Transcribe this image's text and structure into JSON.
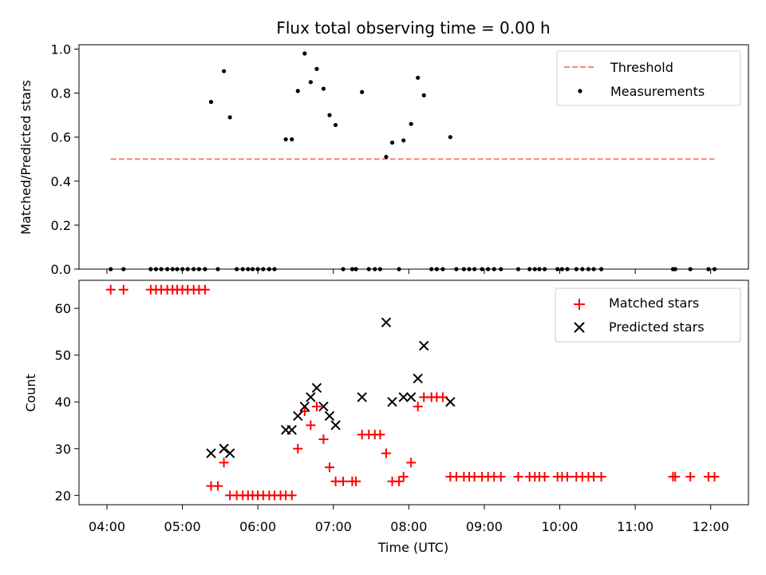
{
  "colors": {
    "threshold": "#ff7f7f",
    "measurement": "#000000",
    "matched": "#ff0000",
    "predicted": "#000000"
  },
  "x_tick_labels": [
    "04:00",
    "05:00",
    "06:00",
    "07:00",
    "08:00",
    "09:00",
    "10:00",
    "11:00",
    "12:00"
  ],
  "chart_data": [
    {
      "type": "scatter",
      "title": "Flux total observing time = 0.00 h",
      "xlabel": "",
      "ylabel": "Matched/Predicted stars",
      "xlim": [
        3.63,
        12.5
      ],
      "ylim": [
        0,
        1.02
      ],
      "yticks": [
        0.0,
        0.2,
        0.4,
        0.6,
        0.8,
        1.0
      ],
      "ytick_labels": [
        "0.0",
        "0.2",
        "0.4",
        "0.6",
        "0.8",
        "1.0"
      ],
      "legend": [
        "Threshold",
        "Measurements"
      ],
      "legend_position": "upper right",
      "threshold": {
        "value": 0.5,
        "x_range": [
          4.05,
          12.05
        ]
      },
      "series": [
        {
          "name": "Measurements",
          "x": [
            4.05,
            4.22,
            4.58,
            4.65,
            4.72,
            4.8,
            4.87,
            4.93,
            5.0,
            5.07,
            5.15,
            5.22,
            5.3,
            5.38,
            5.47,
            5.55,
            5.63,
            5.72,
            5.8,
            5.87,
            5.93,
            6.0,
            6.07,
            6.15,
            6.22,
            6.37,
            6.45,
            6.53,
            6.62,
            6.7,
            6.78,
            6.87,
            6.95,
            7.03,
            7.13,
            7.25,
            7.3,
            7.38,
            7.47,
            7.55,
            7.62,
            7.7,
            7.78,
            7.87,
            7.93,
            8.03,
            8.12,
            8.2,
            8.3,
            8.37,
            8.45,
            8.55,
            8.63,
            8.73,
            8.8,
            8.87,
            8.97,
            9.05,
            9.13,
            9.22,
            9.45,
            9.6,
            9.67,
            9.73,
            9.8,
            9.97,
            10.03,
            10.1,
            10.22,
            10.3,
            10.38,
            10.45,
            10.55,
            11.5,
            11.53,
            11.73,
            11.97,
            12.05
          ],
          "y": [
            0,
            0,
            0,
            0,
            0,
            0,
            0,
            0,
            0,
            0,
            0,
            0,
            0,
            0.76,
            0,
            0.9,
            0.69,
            0,
            0,
            0,
            0,
            0,
            0,
            0,
            0,
            0.59,
            0.59,
            0.81,
            0.98,
            0.85,
            0.91,
            0.82,
            0.7,
            0.655,
            0,
            0,
            0,
            0.805,
            0,
            0,
            0,
            0.51,
            0.575,
            0,
            0.585,
            0.66,
            0.87,
            0.79,
            0,
            0,
            0,
            0.6,
            0,
            0,
            0,
            0,
            0,
            0,
            0,
            0,
            0,
            0,
            0,
            0,
            0,
            0,
            0,
            0,
            0,
            0,
            0,
            0,
            0,
            0,
            0,
            0,
            0,
            0
          ]
        }
      ]
    },
    {
      "type": "scatter",
      "title": "",
      "xlabel": "Time (UTC)",
      "ylabel": "Count",
      "xlim": [
        3.63,
        12.5
      ],
      "ylim": [
        18,
        66
      ],
      "yticks": [
        20,
        30,
        40,
        50,
        60
      ],
      "ytick_labels": [
        "20",
        "30",
        "40",
        "50",
        "60"
      ],
      "legend": [
        "Matched stars",
        "Predicted stars"
      ],
      "legend_position": "upper right",
      "series": [
        {
          "name": "Matched stars",
          "marker": "+",
          "x": [
            4.05,
            4.22,
            4.58,
            4.65,
            4.72,
            4.8,
            4.87,
            4.93,
            5.0,
            5.07,
            5.15,
            5.22,
            5.3,
            5.38,
            5.47,
            5.55,
            5.63,
            5.72,
            5.8,
            5.87,
            5.93,
            6.0,
            6.07,
            6.15,
            6.22,
            6.3,
            6.37,
            6.45,
            6.53,
            6.62,
            6.7,
            6.78,
            6.87,
            6.95,
            7.03,
            7.13,
            7.25,
            7.3,
            7.38,
            7.47,
            7.55,
            7.62,
            7.7,
            7.78,
            7.87,
            7.93,
            8.03,
            8.12,
            8.2,
            8.3,
            8.37,
            8.45,
            8.55,
            8.63,
            8.73,
            8.8,
            8.87,
            8.97,
            9.05,
            9.13,
            9.22,
            9.45,
            9.6,
            9.67,
            9.73,
            9.8,
            9.97,
            10.03,
            10.1,
            10.22,
            10.3,
            10.38,
            10.45,
            10.55,
            11.5,
            11.53,
            11.73,
            11.97,
            12.05
          ],
          "y": [
            64,
            64,
            64,
            64,
            64,
            64,
            64,
            64,
            64,
            64,
            64,
            64,
            64,
            22,
            22,
            27,
            20,
            20,
            20,
            20,
            20,
            20,
            20,
            20,
            20,
            20,
            20,
            20,
            30,
            38,
            35,
            39,
            32,
            26,
            23,
            23,
            23,
            23,
            33,
            33,
            33,
            33,
            29,
            23,
            23,
            24,
            27,
            39,
            41,
            41,
            41,
            41,
            24,
            24,
            24,
            24,
            24,
            24,
            24,
            24,
            24,
            24,
            24,
            24,
            24,
            24,
            24,
            24,
            24,
            24,
            24,
            24,
            24,
            24,
            24,
            24,
            24,
            24,
            24
          ]
        },
        {
          "name": "Predicted stars",
          "marker": "x",
          "x": [
            5.38,
            5.55,
            5.63,
            6.37,
            6.45,
            6.53,
            6.62,
            6.7,
            6.78,
            6.87,
            6.95,
            7.03,
            7.38,
            7.7,
            7.78,
            7.93,
            8.03,
            8.12,
            8.2,
            8.55
          ],
          "y": [
            29,
            30,
            29,
            34,
            34,
            37,
            39,
            41,
            43,
            39,
            37,
            35,
            41,
            57,
            40,
            41,
            41,
            45,
            52,
            40
          ]
        }
      ]
    }
  ]
}
